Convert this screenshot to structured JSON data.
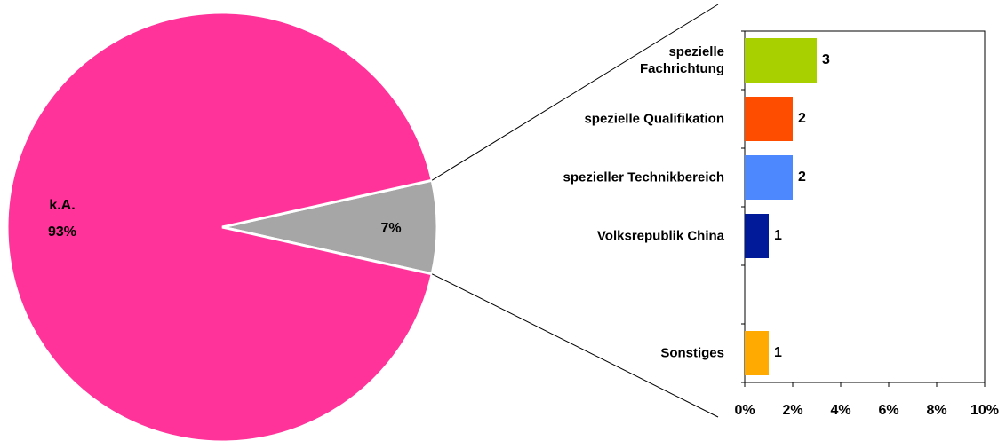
{
  "chart_data": [
    {
      "type": "pie",
      "categories": [
        "k.A.",
        null
      ],
      "values": [
        93,
        7
      ],
      "value_labels": [
        "93%",
        "7%"
      ],
      "colors": [
        "#ff3399",
        "#a6a6a6"
      ]
    },
    {
      "type": "barh",
      "categories": [
        "spezielle\nFachrichtung",
        "spezielle Qualifikation",
        "spezieller Technikbereich",
        "Volksrepublik China",
        null,
        "Sonstiges"
      ],
      "values": [
        3,
        2,
        2,
        1,
        null,
        1
      ],
      "colors": [
        "#a8d000",
        "#ff4d00",
        "#4d88ff",
        "#001a99",
        null,
        "#ffaa00"
      ],
      "xlim": [
        0,
        10
      ],
      "xticks": [
        {
          "value": 0,
          "label": "0%"
        },
        {
          "value": 2,
          "label": "2%"
        },
        {
          "value": 4,
          "label": "4%"
        },
        {
          "value": 6,
          "label": "6%"
        },
        {
          "value": 8,
          "label": "8%"
        },
        {
          "value": 10,
          "label": "10%"
        }
      ]
    }
  ]
}
